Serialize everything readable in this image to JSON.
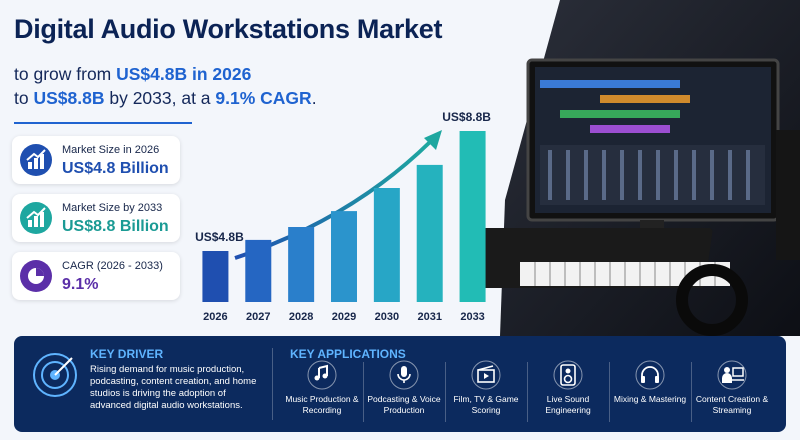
{
  "header": {
    "title": "Digital Audio Workstations Market",
    "subtitle_lines": [
      [
        "to grow from ",
        "US$4.8B in 2026"
      ],
      [
        "to ",
        "US$8.8B",
        " by 2033, at a ",
        "9.1% CAGR",
        "."
      ]
    ]
  },
  "stats": [
    {
      "label": "Market Size in 2026",
      "value": "US$4.8 Billion"
    },
    {
      "label": "Market Size by 2033",
      "value": "US$8.8 Billion"
    },
    {
      "label": "CAGR (2026 - 2033)",
      "value": "9.1%"
    }
  ],
  "chart_data": {
    "type": "bar",
    "categories": [
      "2026",
      "2027",
      "2028",
      "2029",
      "2030",
      "2031",
      "2033"
    ],
    "values": [
      4.8,
      5.17,
      5.6,
      6.13,
      6.9,
      7.67,
      8.8
    ],
    "value_labels": [
      "US$4.8B",
      null,
      null,
      null,
      null,
      null,
      "US$8.8B"
    ],
    "colors": [
      "#1f4fb0",
      "#2566c2",
      "#2a7fcb",
      "#2b94cc",
      "#27a6c6",
      "#25b2be",
      "#22bcb5"
    ],
    "ylim": [
      3.1,
      9.5
    ],
    "grid": false
  },
  "key_driver": {
    "title": "KEY DRIVER",
    "text": "Rising demand for music production, podcasting, content creation, and home studios is driving the adoption of advanced digital audio workstations."
  },
  "key_applications": {
    "title": "KEY APPLICATIONS",
    "items": [
      "Music Production & Recording",
      "Podcasting & Voice Production",
      "Film, TV & Game Scoring",
      "Live Sound Engineering",
      "Mixing & Mastering",
      "Content Creation & Streaming"
    ]
  }
}
